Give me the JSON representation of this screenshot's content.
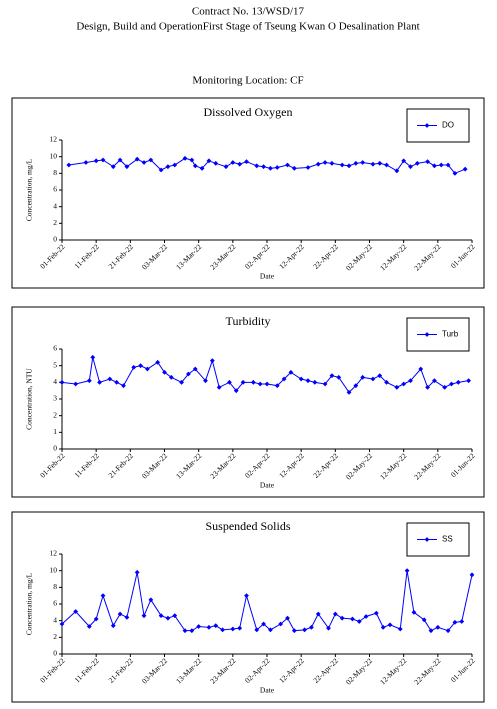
{
  "header": {
    "contract": "Contract No. 13/WSD/17",
    "project": "Design, Build and OperationFirst Stage  of Tseung Kwan O Desalination Plant",
    "location": "Monitoring Location: CF"
  },
  "chart_data": [
    {
      "type": "line",
      "title": "Dissolved Oxygen",
      "xlabel": "Date",
      "ylabel": "Concentration, mg/L",
      "legend": "upper right",
      "x": [
        "2022-02-03",
        "2022-02-08",
        "2022-02-11",
        "2022-02-13",
        "2022-02-16",
        "2022-02-18",
        "2022-02-20",
        "2022-02-23",
        "2022-02-25",
        "2022-02-27",
        "2022-03-02",
        "2022-03-04",
        "2022-03-06",
        "2022-03-09",
        "2022-03-11",
        "2022-03-12",
        "2022-03-14",
        "2022-03-16",
        "2022-03-18",
        "2022-03-21",
        "2022-03-23",
        "2022-03-25",
        "2022-03-27",
        "2022-03-30",
        "2022-04-01",
        "2022-04-03",
        "2022-04-05",
        "2022-04-08",
        "2022-04-10",
        "2022-04-14",
        "2022-04-17",
        "2022-04-19",
        "2022-04-21",
        "2022-04-24",
        "2022-04-26",
        "2022-04-28",
        "2022-04-30",
        "2022-05-03",
        "2022-05-05",
        "2022-05-07",
        "2022-05-10",
        "2022-05-12",
        "2022-05-14",
        "2022-05-16",
        "2022-05-19",
        "2022-05-21",
        "2022-05-23",
        "2022-05-25",
        "2022-05-27",
        "2022-05-30"
      ],
      "series": [
        {
          "name": "DO",
          "color": "#0000ff",
          "values": [
            9.0,
            9.3,
            9.5,
            9.6,
            8.8,
            9.6,
            8.8,
            9.7,
            9.3,
            9.6,
            8.4,
            8.8,
            9.0,
            9.8,
            9.6,
            8.9,
            8.6,
            9.5,
            9.2,
            8.8,
            9.3,
            9.1,
            9.4,
            8.9,
            8.8,
            8.6,
            8.7,
            9.0,
            8.6,
            8.7,
            9.1,
            9.3,
            9.2,
            9.0,
            8.9,
            9.2,
            9.3,
            9.1,
            9.2,
            9.0,
            8.3,
            9.5,
            8.8,
            9.2,
            9.4,
            8.9,
            9.0,
            9.0,
            8.0,
            8.5
          ]
        }
      ],
      "xlim": [
        "2022-02-01",
        "2022-06-01"
      ],
      "xticks": [
        {
          "value": "2022-02-01",
          "label": "01-Feb-22"
        },
        {
          "value": "2022-02-11",
          "label": "11-Feb-22"
        },
        {
          "value": "2022-02-21",
          "label": "21-Feb-22"
        },
        {
          "value": "2022-03-03",
          "label": "03-Mar-22"
        },
        {
          "value": "2022-03-13",
          "label": "13-Mar-22"
        },
        {
          "value": "2022-03-23",
          "label": "23-Mar-22"
        },
        {
          "value": "2022-04-02",
          "label": "02-Apr-22"
        },
        {
          "value": "2022-04-12",
          "label": "12-Apr-22"
        },
        {
          "value": "2022-04-22",
          "label": "22-Apr-22"
        },
        {
          "value": "2022-05-02",
          "label": "02-May-22"
        },
        {
          "value": "2022-05-12",
          "label": "12-May-22"
        },
        {
          "value": "2022-05-22",
          "label": "22-May-22"
        },
        {
          "value": "2022-06-01",
          "label": "01-Jun-22"
        }
      ],
      "ylim": [
        0,
        12
      ],
      "yticks": [
        0,
        2,
        4,
        6,
        8,
        10,
        12
      ]
    },
    {
      "type": "line",
      "title": "Turbidity",
      "xlabel": "Date",
      "ylabel": "Concentration, NTU",
      "legend": "upper right",
      "x": [
        "2022-02-01",
        "2022-02-05",
        "2022-02-09",
        "2022-02-10",
        "2022-02-12",
        "2022-02-15",
        "2022-02-17",
        "2022-02-19",
        "2022-02-22",
        "2022-02-24",
        "2022-02-26",
        "2022-03-01",
        "2022-03-03",
        "2022-03-05",
        "2022-03-08",
        "2022-03-10",
        "2022-03-12",
        "2022-03-15",
        "2022-03-17",
        "2022-03-19",
        "2022-03-22",
        "2022-03-24",
        "2022-03-26",
        "2022-03-29",
        "2022-03-31",
        "2022-04-02",
        "2022-04-05",
        "2022-04-07",
        "2022-04-09",
        "2022-04-12",
        "2022-04-14",
        "2022-04-16",
        "2022-04-19",
        "2022-04-21",
        "2022-04-23",
        "2022-04-26",
        "2022-04-28",
        "2022-04-30",
        "2022-05-03",
        "2022-05-05",
        "2022-05-07",
        "2022-05-10",
        "2022-05-12",
        "2022-05-14",
        "2022-05-17",
        "2022-05-19",
        "2022-05-21",
        "2022-05-24",
        "2022-05-26",
        "2022-05-28",
        "2022-05-31"
      ],
      "series": [
        {
          "name": "Turb",
          "color": "#0000ff",
          "values": [
            4.0,
            3.9,
            4.1,
            5.5,
            4.0,
            4.2,
            4.0,
            3.8,
            4.9,
            5.0,
            4.8,
            5.2,
            4.6,
            4.3,
            4.0,
            4.5,
            4.8,
            4.1,
            5.3,
            3.7,
            4.0,
            3.5,
            4.0,
            4.0,
            3.9,
            3.9,
            3.8,
            4.2,
            4.6,
            4.2,
            4.1,
            4.0,
            3.9,
            4.4,
            4.3,
            3.4,
            3.8,
            4.3,
            4.2,
            4.4,
            4.0,
            3.7,
            3.9,
            4.1,
            4.8,
            3.7,
            4.1,
            3.7,
            3.9,
            4.0,
            4.1
          ]
        }
      ],
      "xlim": [
        "2022-02-01",
        "2022-06-01"
      ],
      "xticks": [
        {
          "value": "2022-02-01",
          "label": "01-Feb-22"
        },
        {
          "value": "2022-02-11",
          "label": "11-Feb-22"
        },
        {
          "value": "2022-02-21",
          "label": "21-Feb-22"
        },
        {
          "value": "2022-03-03",
          "label": "03-Mar-22"
        },
        {
          "value": "2022-03-13",
          "label": "13-Mar-22"
        },
        {
          "value": "2022-03-23",
          "label": "23-Mar-22"
        },
        {
          "value": "2022-04-02",
          "label": "02-Apr-22"
        },
        {
          "value": "2022-04-12",
          "label": "12-Apr-22"
        },
        {
          "value": "2022-04-22",
          "label": "22-Apr-22"
        },
        {
          "value": "2022-05-02",
          "label": "02-May-22"
        },
        {
          "value": "2022-05-12",
          "label": "12-May-22"
        },
        {
          "value": "2022-05-22",
          "label": "22-May-22"
        },
        {
          "value": "2022-06-01",
          "label": "01-Jun-22"
        }
      ],
      "ylim": [
        0,
        6
      ],
      "yticks": [
        0,
        1,
        2,
        3,
        4,
        5,
        6
      ]
    },
    {
      "type": "line",
      "title": "Suspended Solids",
      "xlabel": "Date",
      "ylabel": "Concentration, mg/L",
      "legend": "upper right",
      "x": [
        "2022-02-01",
        "2022-02-05",
        "2022-02-09",
        "2022-02-11",
        "2022-02-13",
        "2022-02-16",
        "2022-02-18",
        "2022-02-20",
        "2022-02-23",
        "2022-02-25",
        "2022-02-27",
        "2022-03-02",
        "2022-03-04",
        "2022-03-06",
        "2022-03-09",
        "2022-03-11",
        "2022-03-13",
        "2022-03-16",
        "2022-03-18",
        "2022-03-20",
        "2022-03-23",
        "2022-03-25",
        "2022-03-27",
        "2022-03-30",
        "2022-04-01",
        "2022-04-03",
        "2022-04-06",
        "2022-04-08",
        "2022-04-10",
        "2022-04-13",
        "2022-04-15",
        "2022-04-17",
        "2022-04-20",
        "2022-04-22",
        "2022-04-24",
        "2022-04-27",
        "2022-04-29",
        "2022-05-01",
        "2022-05-04",
        "2022-05-06",
        "2022-05-08",
        "2022-05-11",
        "2022-05-13",
        "2022-05-15",
        "2022-05-18",
        "2022-05-20",
        "2022-05-22",
        "2022-05-25",
        "2022-05-27",
        "2022-05-29",
        "2022-06-01"
      ],
      "series": [
        {
          "name": "SS",
          "color": "#0000ff",
          "values": [
            3.6,
            5.1,
            3.3,
            4.2,
            7.0,
            3.4,
            4.8,
            4.4,
            9.8,
            4.6,
            6.5,
            4.6,
            4.3,
            4.6,
            2.8,
            2.8,
            3.3,
            3.2,
            3.4,
            2.9,
            3.0,
            3.1,
            7.0,
            2.9,
            3.6,
            2.9,
            3.6,
            4.3,
            2.8,
            2.9,
            3.2,
            4.8,
            3.1,
            4.8,
            4.3,
            4.2,
            3.9,
            4.5,
            4.9,
            3.2,
            3.5,
            3.0,
            10.0,
            5.0,
            4.1,
            2.8,
            3.2,
            2.8,
            3.8,
            3.9,
            9.5
          ]
        }
      ],
      "xlim": [
        "2022-02-01",
        "2022-06-01"
      ],
      "xticks": [
        {
          "value": "2022-02-01",
          "label": "01-Feb-22"
        },
        {
          "value": "2022-02-11",
          "label": "11-Feb-22"
        },
        {
          "value": "2022-02-21",
          "label": "21-Feb-22"
        },
        {
          "value": "2022-03-03",
          "label": "03-Mar-22"
        },
        {
          "value": "2022-03-13",
          "label": "13-Mar-22"
        },
        {
          "value": "2022-03-23",
          "label": "23-Mar-22"
        },
        {
          "value": "2022-04-02",
          "label": "02-Apr-22"
        },
        {
          "value": "2022-04-12",
          "label": "12-Apr-22"
        },
        {
          "value": "2022-04-22",
          "label": "22-Apr-22"
        },
        {
          "value": "2022-05-02",
          "label": "02-May-22"
        },
        {
          "value": "2022-05-12",
          "label": "12-May-22"
        },
        {
          "value": "2022-05-22",
          "label": "22-May-22"
        },
        {
          "value": "2022-06-01",
          "label": "01-Jun-22"
        }
      ],
      "ylim": [
        0,
        12
      ],
      "yticks": [
        0,
        2,
        4,
        6,
        8,
        10,
        12
      ]
    }
  ]
}
